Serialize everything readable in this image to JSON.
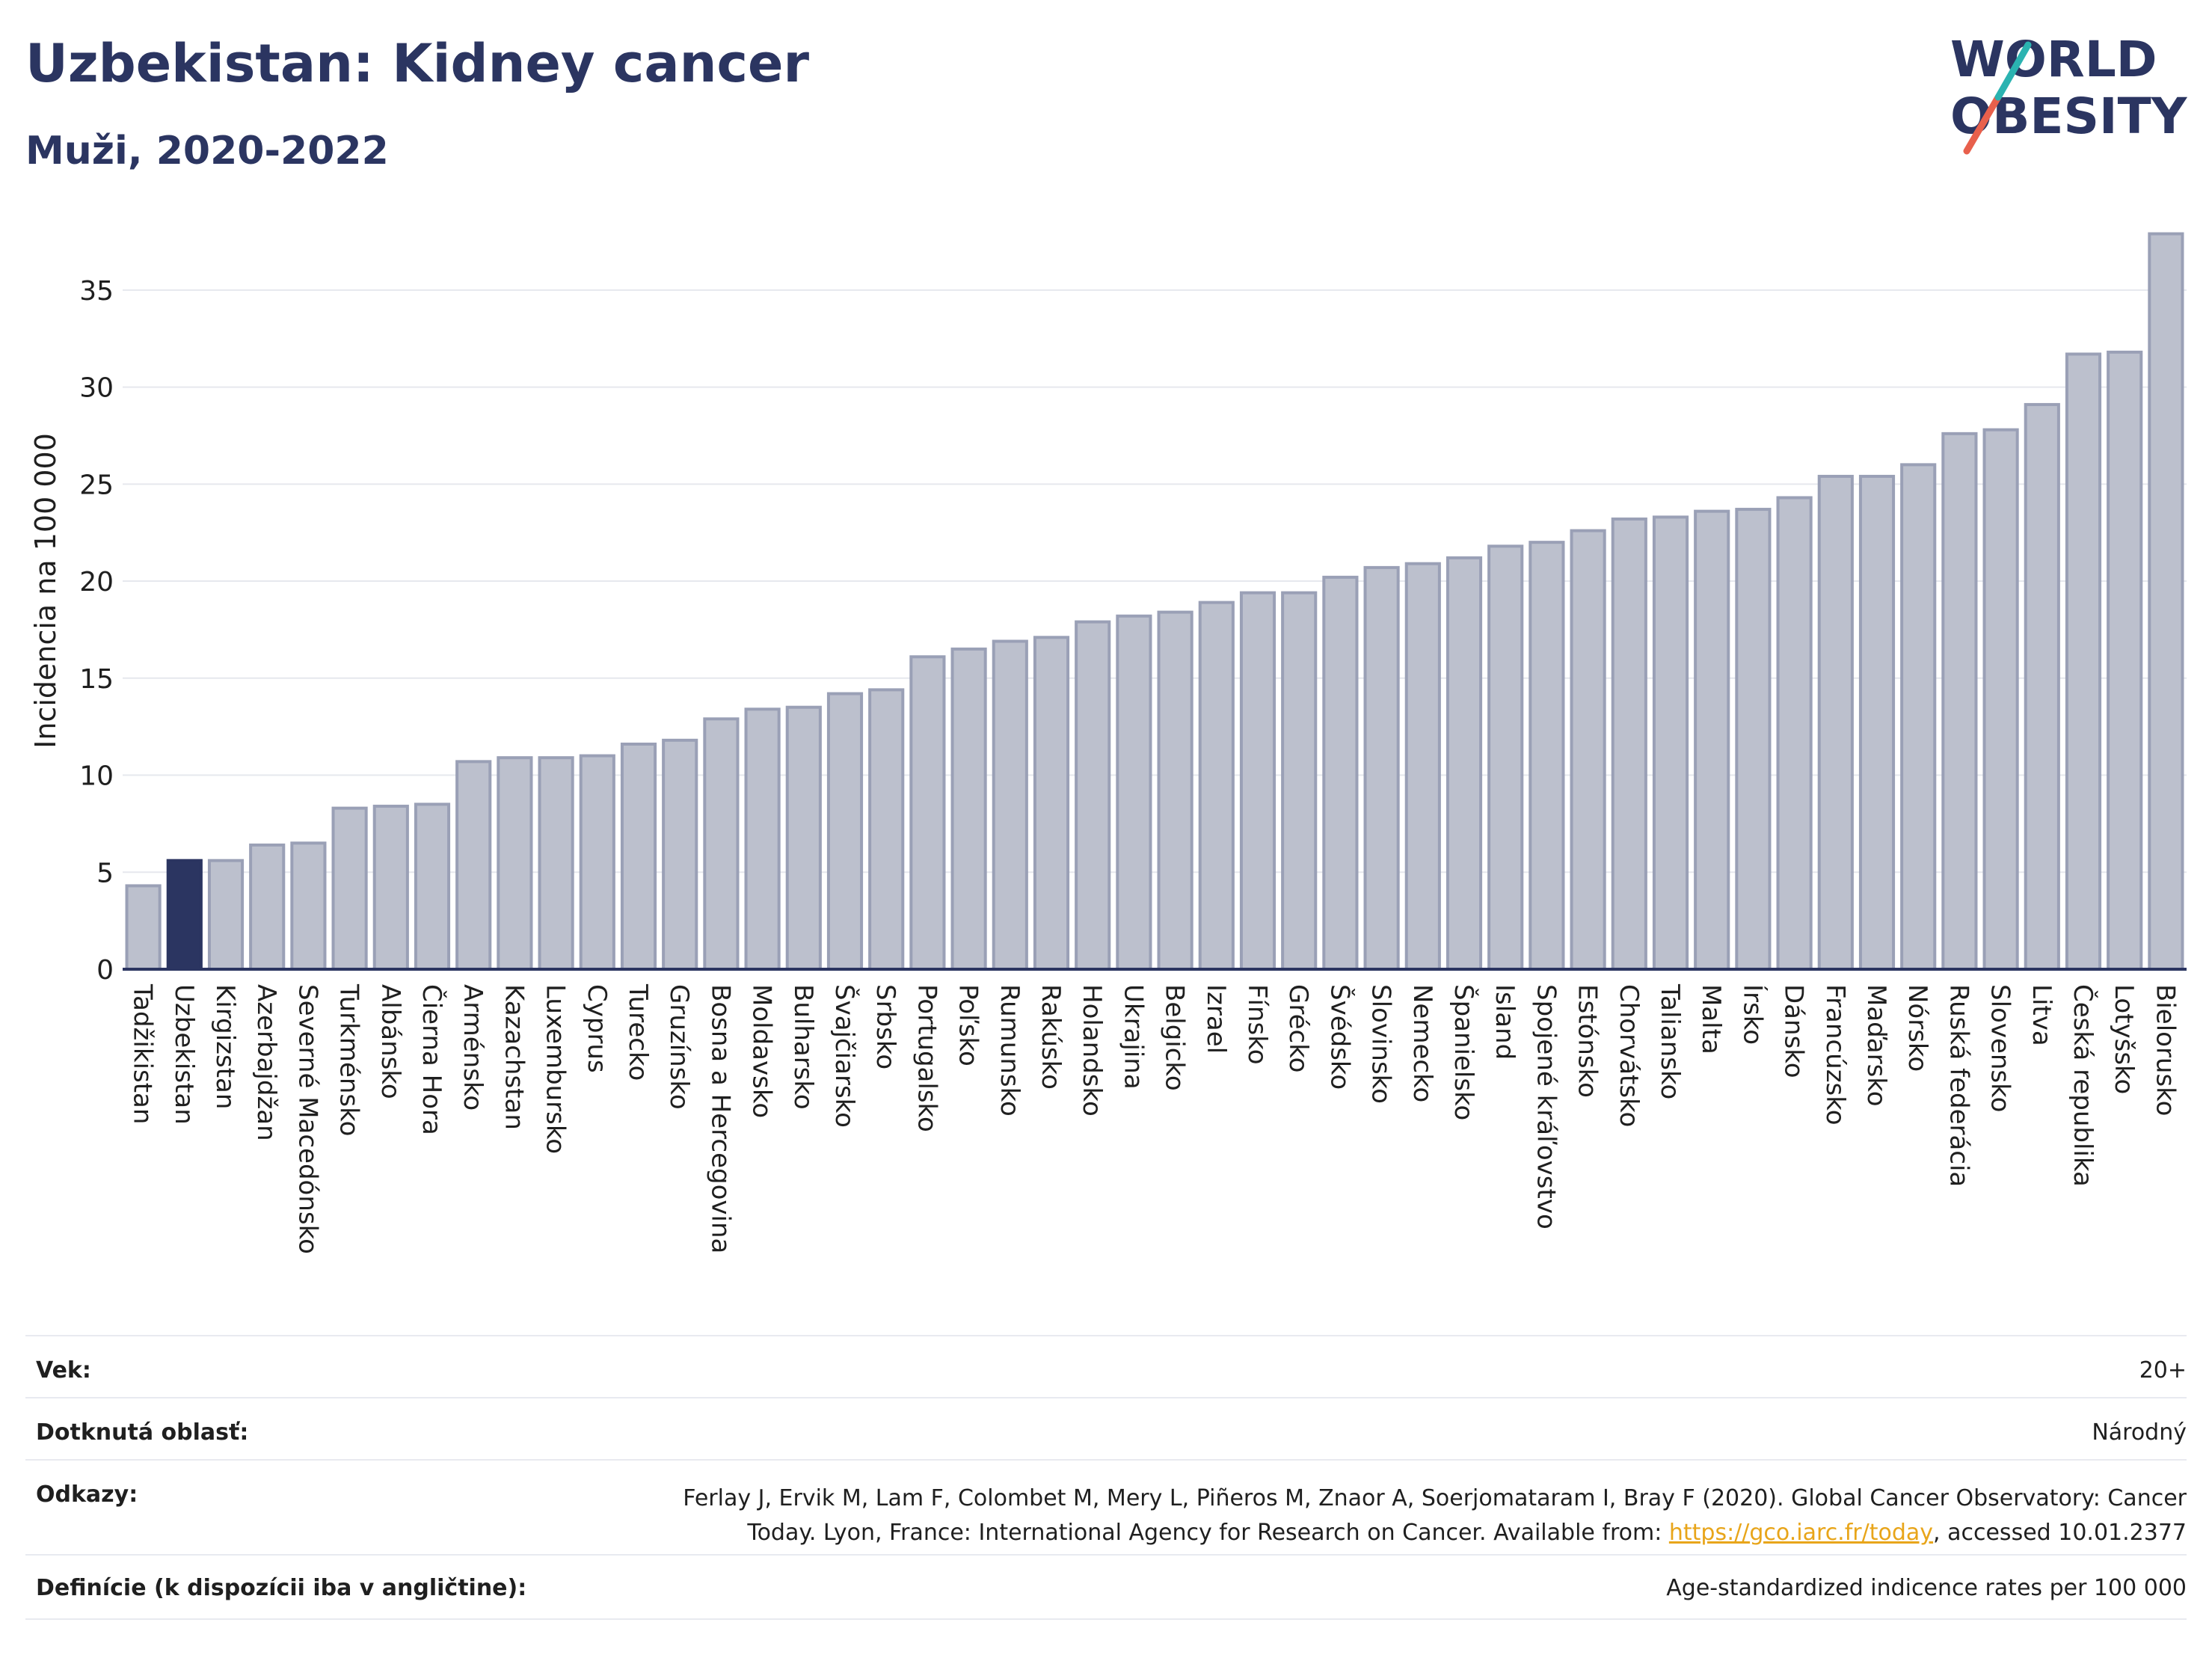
{
  "header": {
    "title": "Uzbekistan: Kidney cancer",
    "subtitle": "Muži, 2020-2022"
  },
  "logo": {
    "line1": "WORLD",
    "line2": "OBESITY",
    "colors": {
      "text": "#2b3561",
      "slash_red": "#e8604c",
      "slash_teal": "#2bb3b1"
    }
  },
  "colors": {
    "bar_fill": "#bcc0cd",
    "bar_stroke": "#9aa0b6",
    "highlight_fill": "#2b3561",
    "grid": "#e6e8ee",
    "axis": "#2b3561"
  },
  "chart_data": {
    "type": "bar",
    "title": "",
    "xlabel": "",
    "ylabel": "Incidencia na 100 000",
    "ylim": [
      0,
      38
    ],
    "yticks": [
      0,
      5,
      10,
      15,
      20,
      25,
      30,
      35
    ],
    "grid": true,
    "highlight": "Uzbekistan",
    "categories": [
      "Tadžikistan",
      "Uzbekistan",
      "Kirgizstan",
      "Azerbajdžan",
      "Severné Macedónsko",
      "Turkménsko",
      "Albánsko",
      "Čierna Hora",
      "Arménsko",
      "Kazachstan",
      "Luxembursko",
      "Cyprus",
      "Turecko",
      "Gruzínsko",
      "Bosna a Hercegovina",
      "Moldavsko",
      "Bulharsko",
      "Švajčiarsko",
      "Srbsko",
      "Portugalsko",
      "Poľsko",
      "Rumunsko",
      "Rakúsko",
      "Holandsko",
      "Ukrajina",
      "Belgicko",
      "Izrael",
      "Fínsko",
      "Grécko",
      "Švédsko",
      "Slovinsko",
      "Nemecko",
      "Španielsko",
      "Island",
      "Spojené kráľovstvo",
      "Estónsko",
      "Chorvátsko",
      "Taliansko",
      "Malta",
      "Írsko",
      "Dánsko",
      "Francúzsko",
      "Maďarsko",
      "Nórsko",
      "Ruská federácia",
      "Slovensko",
      "Litva",
      "Česká republika",
      "Lotyšsko",
      "Bielorusko"
    ],
    "values": [
      4.3,
      5.6,
      5.6,
      6.4,
      6.5,
      8.3,
      8.4,
      8.5,
      10.7,
      10.9,
      10.9,
      11.0,
      11.6,
      11.8,
      12.9,
      13.4,
      13.5,
      14.2,
      14.4,
      16.1,
      16.5,
      16.9,
      17.1,
      17.9,
      18.2,
      18.4,
      18.9,
      19.4,
      19.4,
      20.2,
      20.7,
      20.9,
      21.2,
      21.8,
      22.0,
      22.6,
      23.2,
      23.3,
      23.6,
      23.7,
      24.3,
      25.4,
      25.4,
      26.0,
      27.6,
      27.8,
      29.1,
      31.7,
      31.8,
      37.9
    ]
  },
  "info": {
    "age_label": "Vek:",
    "age_value": "20+",
    "area_label": "Dotknutá oblasť:",
    "area_value": "Národný",
    "refs_label": "Odkazy:",
    "refs_line1": "Ferlay J, Ervik M, Lam F, Colombet M, Mery L, Piñeros M, Znaor A, Soerjomataram I, Bray F (2020). Global Cancer Observatory: Cancer",
    "refs_line2_pre": "Today. Lyon, France: International Agency for Research on Cancer. Available from: ",
    "refs_link": "https://gco.iarc.fr/today",
    "refs_line2_post": ", accessed 10.01.2377",
    "def_label": "Definície (k dispozícii iba v angličtine):",
    "def_value": "Age-standardized indicence rates per 100 000"
  }
}
